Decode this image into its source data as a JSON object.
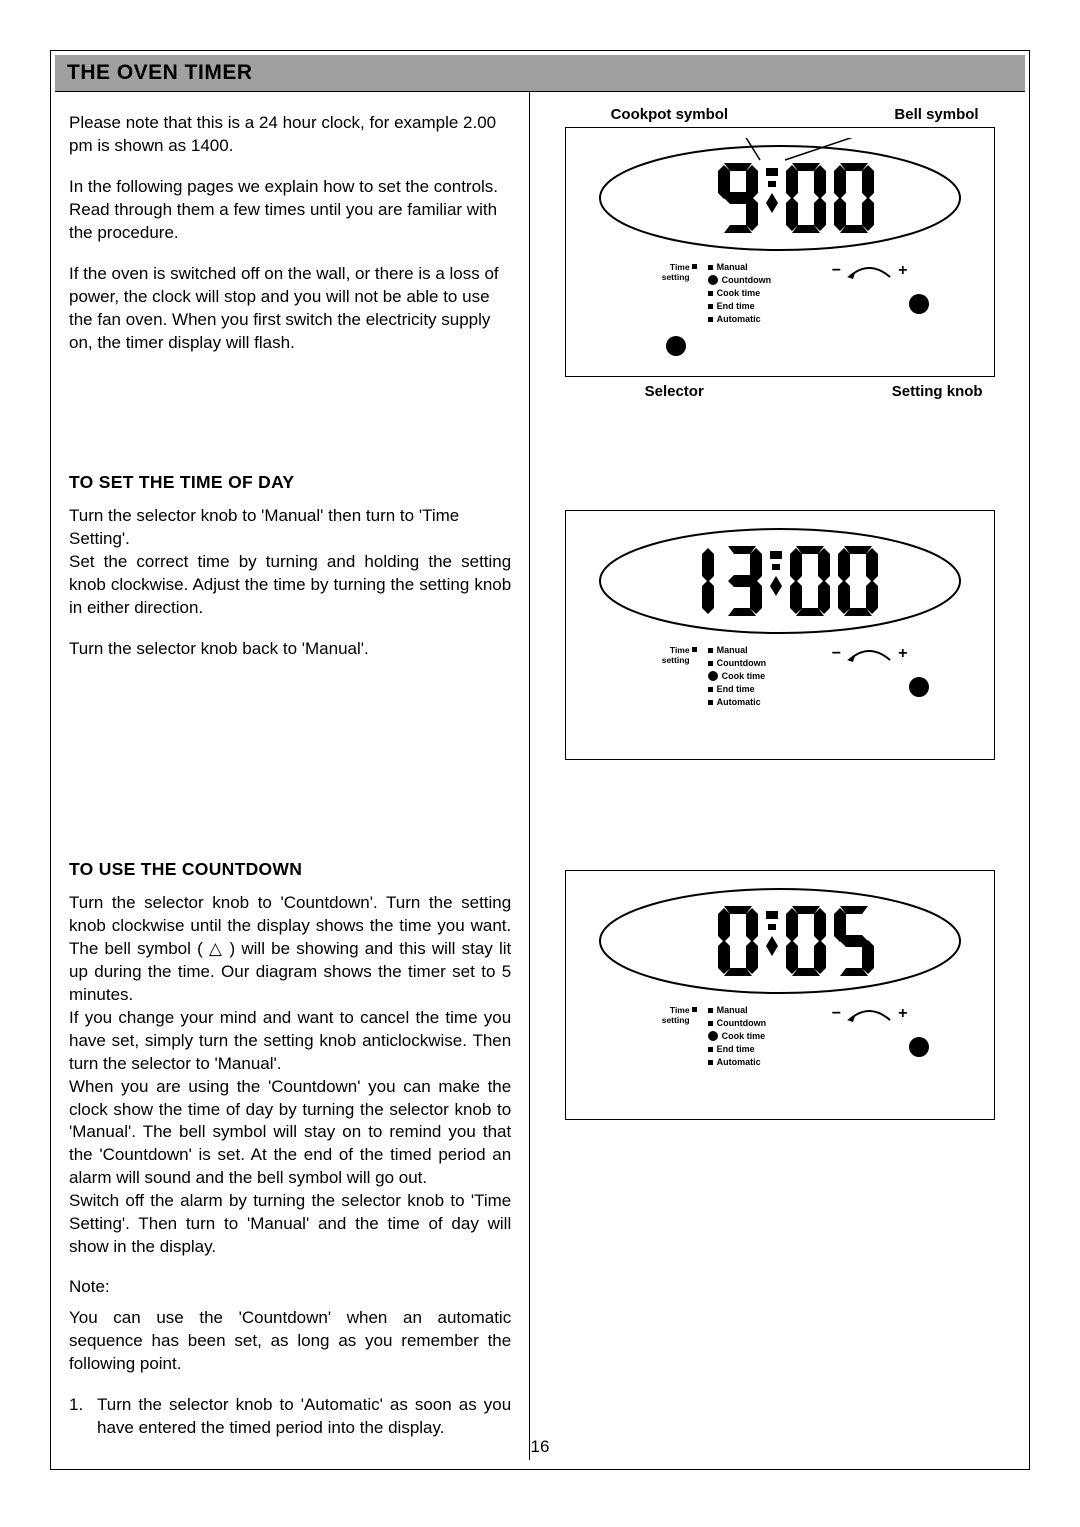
{
  "header": {
    "title": "THE OVEN TIMER"
  },
  "left": {
    "para1": "Please note that this is a 24 hour clock, for example 2.00 pm is shown as 1400.",
    "para2": "In the following pages we explain how to set the controls.  Read through them a few times until you are familiar with the procedure.",
    "para3": "If the oven is switched off on the wall, or there is a loss of power, the clock will stop and you will not be able to use the fan oven.  When you first switch the electricity  supply on, the timer display will flash.",
    "sectionA": {
      "heading": "TO SET THE TIME OF DAY",
      "p1": "Turn the selector knob to 'Manual' then turn to 'Time Setting'.",
      "p2": "Set the correct time by turning and holding the setting knob clockwise. Adjust the time by turning the setting knob in either direction.",
      "p3": "Turn the selector knob back to 'Manual'."
    },
    "sectionB": {
      "heading": "TO USE THE COUNTDOWN",
      "p1": "Turn the selector knob to 'Countdown'. Turn the setting knob clockwise until the display shows the time you want.  The bell symbol ( △ ) will be showing and this will stay lit up during the time.  Our diagram shows the timer set to 5 minutes.",
      "p2": "If you change your mind and want to cancel the time you have set, simply turn the setting knob anticlockwise.  Then turn the selector to 'Manual'.",
      "p3": "When you are using the 'Countdown' you can make the clock show the time of day by turning the selector knob to 'Manual'.  The bell symbol will stay on to remind you that the 'Countdown' is set.  At the end of the timed period an alarm will sound and the bell symbol will go out.",
      "p4": "Switch off the alarm by turning the selector knob to 'Time Setting'.  Then turn to 'Manual' and the time of day will show in the display.",
      "noteLabel": "Note:",
      "note1": "You can use the 'Countdown' when an automatic sequence has been set, as long as you remember the following point.",
      "listNum": "1.",
      "listText": "Turn the selector knob to 'Automatic' as soon as you have entered the timed period into the display."
    }
  },
  "labels": {
    "cookpot": "Cookpot symbol",
    "bell": "Bell symbol",
    "selector": "Selector",
    "settingKnob": "Setting knob",
    "timeSetting": "Time\nsetting",
    "manual": "Manual",
    "countdown": "Countdown",
    "cookTime": "Cook time",
    "endTime": "End time",
    "automatic": "Automatic",
    "minus": "−",
    "plus": "+"
  },
  "diagrams": [
    {
      "display": "9:00",
      "showTopLabels": true,
      "showBottomLabels": true,
      "showPointerLines": true
    },
    {
      "display": "13:00",
      "showTopLabels": false,
      "showBottomLabels": false,
      "showPointerLines": false
    },
    {
      "display": "0:05",
      "showTopLabels": false,
      "showBottomLabels": false,
      "showPointerLines": false
    }
  ],
  "pageNumber": "16",
  "style": {
    "bg": "#ffffff",
    "headerBg": "#a0a0a0",
    "text": "#000000",
    "border": "#000000"
  }
}
